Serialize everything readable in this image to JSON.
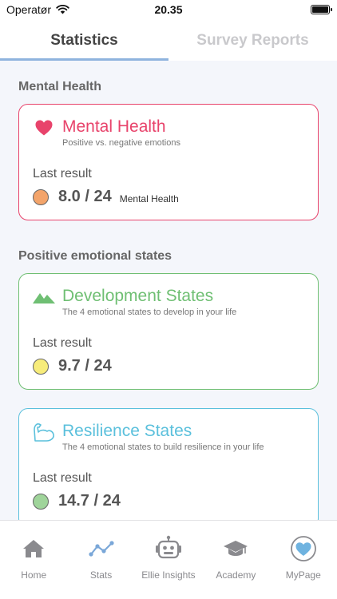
{
  "status_bar": {
    "carrier": "Operatør",
    "time": "20.35"
  },
  "tabs": [
    {
      "label": "Statistics",
      "active": true
    },
    {
      "label": "Survey Reports",
      "active": false
    }
  ],
  "sections": [
    {
      "title": "Mental Health",
      "cards": [
        {
          "title": "Mental Health",
          "subtitle": "Positive vs. negative emotions",
          "result_label": "Last result",
          "score": "8.0 / 24",
          "score_tag": "Mental Health",
          "icon": "heart-icon",
          "color": "#e8436b",
          "dot_color": "#f3a46a"
        }
      ]
    },
    {
      "title": "Positive emotional states",
      "cards": [
        {
          "title": "Development States",
          "subtitle": "The 4 emotional states to develop in your life",
          "result_label": "Last result",
          "score": "9.7 / 24",
          "icon": "mountain-icon",
          "color": "#6fbf73",
          "dot_color": "#f7ec7a"
        },
        {
          "title": "Resilience States",
          "subtitle": "The 4 emotional states to build resilience in your life",
          "result_label": "Last result",
          "score": "14.7 / 24",
          "icon": "flexed-arm-icon",
          "color": "#5bc0dc",
          "dot_color": "#9fd49a"
        }
      ]
    }
  ],
  "bottom_nav": [
    {
      "label": "Home",
      "icon": "home-icon"
    },
    {
      "label": "Stats",
      "icon": "stats-line-icon"
    },
    {
      "label": "Ellie Insights",
      "icon": "robot-icon"
    },
    {
      "label": "Academy",
      "icon": "graduation-cap-icon"
    },
    {
      "label": "MyPage",
      "icon": "heart-circle-icon"
    }
  ]
}
